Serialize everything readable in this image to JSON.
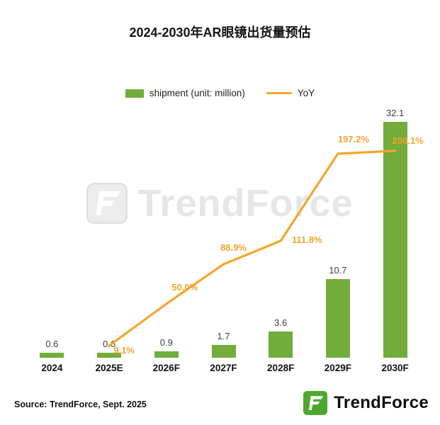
{
  "source": "Source: TrendForce, Sept. 2025",
  "watermark": "TrendForce",
  "brand": "TrendForce",
  "colors": {
    "bar": "#72AC3A",
    "line": "#F5A62B",
    "yoy_label": "#EFA42C",
    "bar_label": "#3D3D3D",
    "axis_label": "#111111",
    "watermark": "#E6E6E6",
    "logo_green": "#4CA82C"
  },
  "chart_data": {
    "type": "bar+line",
    "title": "2024-2030年AR眼镜出货量预估",
    "categories": [
      "2024",
      "2025E",
      "2026F",
      "2027F",
      "2028F",
      "2029F",
      "2030F"
    ],
    "series": [
      {
        "name": "shipment (unit: million)",
        "type": "bar",
        "color": "#72AC3A",
        "values": [
          0.6,
          0.6,
          0.9,
          1.7,
          3.6,
          10.7,
          32.1
        ],
        "labels": [
          "0.6",
          "0.6",
          "0.9",
          "1.7",
          "3.6",
          "10.7",
          "32.1"
        ]
      },
      {
        "name": "YoY",
        "type": "line",
        "color": "#F5A62B",
        "unit": "%",
        "values": [
          null,
          9.1,
          50.0,
          88.9,
          111.8,
          197.2,
          200.1
        ],
        "labels": [
          "",
          "9.1%",
          "50.0%",
          "88.9%",
          "111.8%",
          "197.2%",
          "200.1%"
        ]
      }
    ],
    "axes": {
      "y_axis_visible": false,
      "gridlines": false,
      "ylim": [
        0,
        35
      ],
      "y2lim": [
        0,
        220
      ]
    },
    "legend_position": "top"
  }
}
